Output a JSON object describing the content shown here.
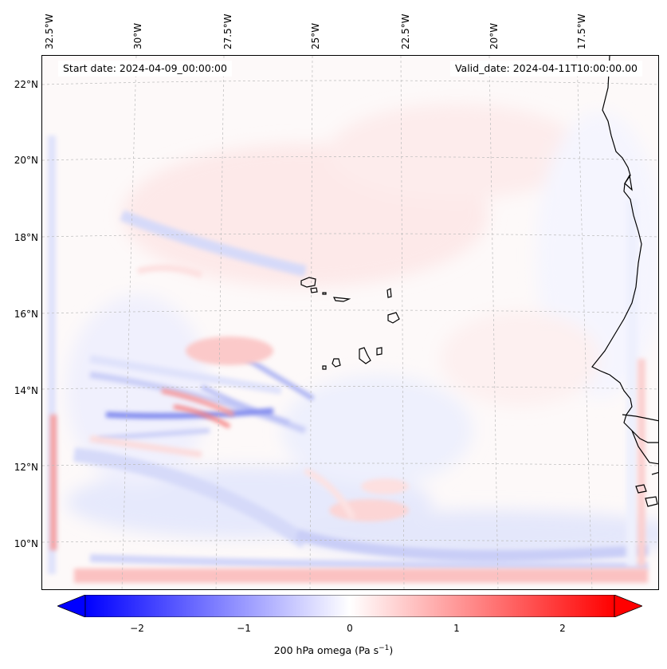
{
  "map": {
    "start_date_label": "Start date: 2024-04-09_00:00:00",
    "valid_date_label": "Valid_date: 2024-04-11T10:00:00.00",
    "longitude_labels": [
      "32.5°W",
      "30°W",
      "27.5°W",
      "25°W",
      "22.5°W",
      "20°W",
      "17.5°W"
    ],
    "latitude_labels": [
      "22°N",
      "20°N",
      "18°N",
      "16°N",
      "14°N",
      "12°N",
      "10°N"
    ],
    "longitudes": [
      -32.5,
      -30,
      -27.5,
      -25,
      -22.5,
      -20,
      -17.5
    ],
    "latitudes": [
      22,
      20,
      18,
      16,
      14,
      12,
      10
    ],
    "extent": {
      "lon_min": -32.5,
      "lon_max": -15.3,
      "lat_min": 8.9,
      "lat_max": 22.8
    },
    "coastline_color": "#000000",
    "gridline_color": "#bbbbbb"
  },
  "colorbar": {
    "title": "200 hPa omega (Pa s",
    "title_units_exp": "−1",
    "title_close": ")",
    "tick_labels": [
      "−2",
      "−1",
      "0",
      "1",
      "2"
    ],
    "tick_values": [
      -2,
      -1,
      0,
      1,
      2
    ],
    "min": -2.5,
    "max": 2.5,
    "negative_color": "#0000ff",
    "neutral_color": "#ffffff",
    "positive_color": "#ff0000"
  }
}
